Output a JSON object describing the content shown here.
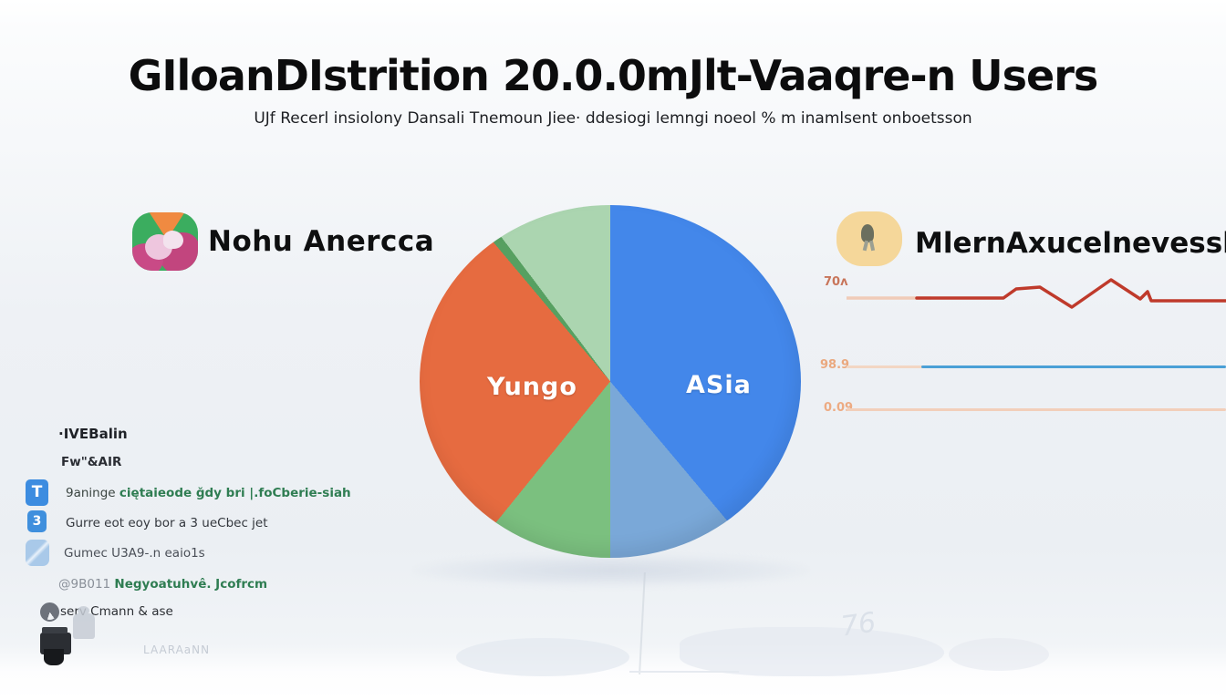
{
  "page": {
    "title": "GIloanDIstrition 20.0.0mJlt-Vaaqre-n Users",
    "subtitle": "UJf Recerl insiolony Dansali Tnemoun Jiee· ddesiogi lemngi noeol % m inamlsent onboetsson"
  },
  "sections": {
    "left": {
      "label": "Nohu Anercca",
      "icon": "globe-blob-icon"
    },
    "right": {
      "label": "MlernAxucelnevessla",
      "icon": "person-badge-icon"
    }
  },
  "chart_data": [
    {
      "type": "pie",
      "title": "GIloanDIstrition 20.0.0mJlt-Vaaqre-n Users",
      "legend_position": "none",
      "slices": [
        {
          "label": "ASia",
          "color": "#4387ea",
          "start_deg": 0,
          "end_deg": 140,
          "value_pct": 39
        },
        {
          "label": "",
          "color": "#7aa8d8",
          "start_deg": 140,
          "end_deg": 180,
          "value_pct": 11
        },
        {
          "label": "",
          "color": "#7bc07f",
          "start_deg": 180,
          "end_deg": 219,
          "value_pct": 11
        },
        {
          "label": "Yungo",
          "color": "#e66b40",
          "start_deg": 219,
          "end_deg": 320,
          "value_pct": 28
        },
        {
          "label": "",
          "color": "#57a061",
          "start_deg": 320,
          "end_deg": 323,
          "value_pct": 0
        },
        {
          "label": "",
          "color": "#abd5b0",
          "start_deg": 323,
          "end_deg": 360,
          "value_pct": 11
        }
      ]
    },
    {
      "type": "line",
      "title": "MlernAxucelnevessla",
      "grid": false,
      "series": [
        {
          "name": "70ʌ",
          "color": "#bf3a2b",
          "lead_color": "#f0cbb8",
          "shape": "flat-then-two-peaks",
          "lead_in": [
            [
              0,
              27
            ],
            [
              92,
              27
            ]
          ],
          "points": [
            [
              77,
              27
            ],
            [
              172,
              27
            ],
            [
              186,
              17
            ],
            [
              212,
              15
            ],
            [
              247,
              37
            ],
            [
              290,
              7
            ],
            [
              322,
              28
            ],
            [
              330,
              20
            ],
            [
              334,
              30
            ],
            [
              416,
              30
            ]
          ]
        },
        {
          "name": "98.9",
          "color": "#4aa0d6",
          "lead_color": "#f3d6c3",
          "shape": "flat"
        },
        {
          "name": "0.09",
          "color": "#f2cfba",
          "lead_color": "#f2cfba",
          "shape": "flat"
        }
      ]
    }
  ],
  "legend": {
    "items": [
      {
        "icon": "none",
        "glyph": "",
        "prefix": "",
        "text": "·IVEBalin"
      },
      {
        "icon": "none",
        "glyph": "",
        "prefix": "",
        "text": "Fw\"&AIR"
      },
      {
        "icon": "blue-tshirt-icon",
        "glyph": "T",
        "prefix": "9aninge ",
        "text": "ciętaieode ǧdy bri |.foCberie-siah"
      },
      {
        "icon": "blue-hand-icon",
        "glyph": "3",
        "prefix": "",
        "text": "Gurre eot eoy bor a 3 ueCbec jet"
      },
      {
        "icon": "paper-plane-icon",
        "glyph": "",
        "prefix": "",
        "text": "Gumec U3A9-.n eaio1s"
      },
      {
        "icon": "pen-scribble-icon",
        "glyph": "",
        "prefix": "@9B011 ",
        "text": "Negyoatuhvê. Jcofrcm"
      },
      {
        "icon": "circle-badge-icon",
        "glyph": "",
        "prefix": "",
        "text": "serv Cmann & ase"
      },
      {
        "icon": "camera-icon",
        "glyph": "",
        "prefix": "",
        "text": "LAARAaNN"
      }
    ]
  },
  "decor": {
    "watermark_text": "76"
  },
  "colors": {
    "pie_blue": "#4387ea",
    "pie_light_blue": "#7aa8d8",
    "pie_green": "#7bc07f",
    "pie_orange": "#e66b40",
    "pie_light_green": "#abd5b0",
    "line_red": "#bf3a2b",
    "line_blue": "#4aa0d6",
    "line_pink": "#f2cfba",
    "left_icon_green": "#3bad5f",
    "right_icon_tan": "#f5d79a"
  }
}
